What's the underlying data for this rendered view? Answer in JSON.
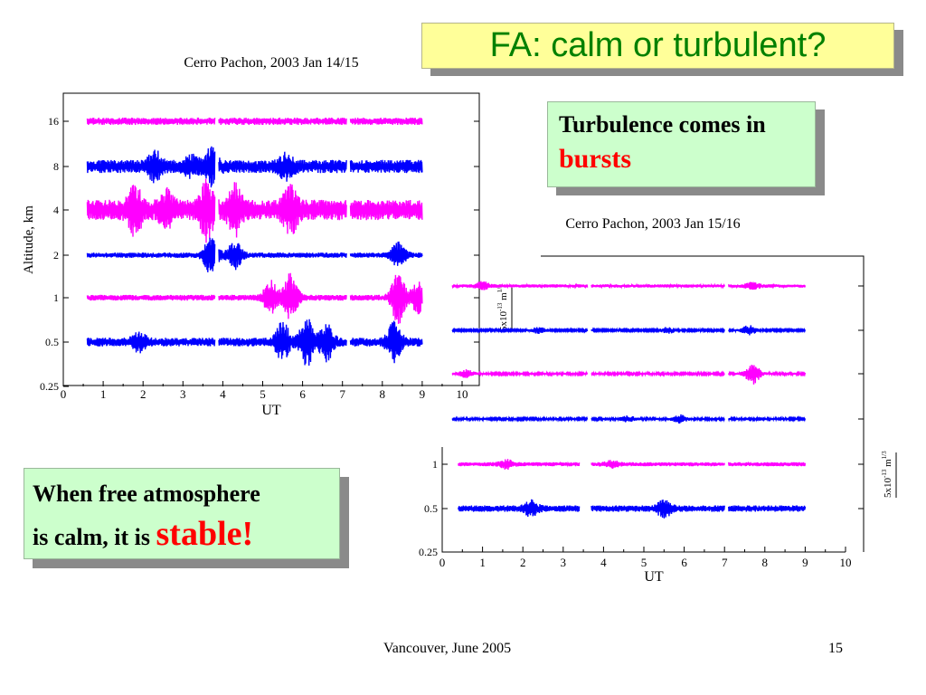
{
  "slide": {
    "title": "FA: calm or turbulent?",
    "callout_bursts": {
      "text": "Turbulence comes in",
      "highlight": "bursts"
    },
    "callout_stable": {
      "line1": "When free atmosphere",
      "line2": "is calm, it is",
      "highlight": "stable!"
    },
    "footer_left": "Vancouver, June 2005",
    "page_number": "15",
    "colors": {
      "title_text": "#008000",
      "title_bg": "#ffff99",
      "callout_bg": "#ccffcc",
      "highlight": "#ff0000",
      "magenta": "#ff00ff",
      "blue": "#0000ff"
    }
  },
  "chart_data": [
    {
      "type": "line",
      "title": "Cerro Pachon,  2003 Jan 14/15",
      "xlabel": "UT",
      "ylabel": "Altitude, km",
      "xlim": [
        0,
        10
      ],
      "x_ticks": [
        0,
        1,
        2,
        3,
        4,
        5,
        6,
        7,
        8,
        9,
        10
      ],
      "y_scale": "log",
      "ylim": [
        0.25,
        24
      ],
      "y_ticks": [
        "16",
        "8",
        "4",
        "2",
        "1",
        "0.5",
        "0.25"
      ],
      "series": [
        {
          "level": 16,
          "color": "#ff00ff",
          "segments": [
            [
              0.6,
              3.8
            ],
            [
              3.9,
              7.1
            ],
            [
              7.2,
              9.0
            ]
          ],
          "intensity": 0.25,
          "bursts": []
        },
        {
          "level": 8,
          "color": "#0000ff",
          "segments": [
            [
              0.6,
              3.8
            ],
            [
              3.9,
              7.1
            ],
            [
              7.2,
              9.0
            ]
          ],
          "intensity": 0.45,
          "bursts": [
            {
              "t": 2.3,
              "amp": 0.8
            },
            {
              "t": 3.2,
              "amp": 0.5
            },
            {
              "t": 3.7,
              "amp": 1.0
            },
            {
              "t": 5.6,
              "amp": 0.7
            }
          ]
        },
        {
          "level": 4,
          "color": "#ff00ff",
          "segments": [
            [
              0.6,
              3.8
            ],
            [
              3.9,
              7.1
            ],
            [
              7.2,
              9.0
            ]
          ],
          "intensity": 0.7,
          "bursts": [
            {
              "t": 1.8,
              "amp": 1.3
            },
            {
              "t": 2.6,
              "amp": 0.9
            },
            {
              "t": 3.6,
              "amp": 1.6
            },
            {
              "t": 4.3,
              "amp": 1.3
            },
            {
              "t": 5.7,
              "amp": 1.4
            }
          ]
        },
        {
          "level": 2,
          "color": "#0000ff",
          "segments": [
            [
              0.6,
              3.8
            ],
            [
              3.9,
              7.1
            ],
            [
              7.2,
              9.0
            ]
          ],
          "intensity": 0.18,
          "bursts": [
            {
              "t": 3.7,
              "amp": 1.2
            },
            {
              "t": 4.3,
              "amp": 0.9
            },
            {
              "t": 8.4,
              "amp": 0.8
            }
          ]
        },
        {
          "level": 1,
          "color": "#ff00ff",
          "segments": [
            [
              0.6,
              3.8
            ],
            [
              3.9,
              7.1
            ],
            [
              7.2,
              9.0
            ]
          ],
          "intensity": 0.2,
          "bursts": [
            {
              "t": 5.2,
              "amp": 1.1
            },
            {
              "t": 5.7,
              "amp": 1.6
            },
            {
              "t": 8.4,
              "amp": 1.7
            },
            {
              "t": 8.9,
              "amp": 1.0
            }
          ]
        },
        {
          "level": 0.5,
          "color": "#0000ff",
          "segments": [
            [
              0.6,
              3.8
            ],
            [
              3.9,
              7.1
            ],
            [
              7.2,
              9.0
            ]
          ],
          "intensity": 0.3,
          "bursts": [
            {
              "t": 1.9,
              "amp": 0.5
            },
            {
              "t": 5.5,
              "amp": 1.2
            },
            {
              "t": 6.1,
              "amp": 1.5
            },
            {
              "t": 6.6,
              "amp": 1.1
            },
            {
              "t": 8.3,
              "amp": 1.3
            }
          ]
        }
      ]
    },
    {
      "type": "line",
      "title": "Cerro Pachon, 2003 Jan 15/16",
      "xlabel": "UT",
      "xlim": [
        0,
        10
      ],
      "x_ticks": [
        0,
        1,
        2,
        3,
        4,
        5,
        6,
        7,
        8,
        9,
        10
      ],
      "y_scale": "log",
      "ylim": [
        0.25,
        24
      ],
      "y_ticks": [
        "1",
        "0.5",
        "0.25"
      ],
      "scale_label": "5x10-13 m1/3",
      "series": [
        {
          "level": 16,
          "color": "#ff00ff",
          "segments": [
            [
              0.25,
              3.6
            ],
            [
              3.7,
              7.0
            ],
            [
              7.1,
              9.0
            ]
          ],
          "intensity": 0.18,
          "bursts": [
            {
              "t": 1.0,
              "amp": 0.4
            },
            {
              "t": 7.7,
              "amp": 0.3
            }
          ]
        },
        {
          "level": 8,
          "color": "#0000ff",
          "segments": [
            [
              0.25,
              3.6
            ],
            [
              3.7,
              7.0
            ],
            [
              7.1,
              9.0
            ]
          ],
          "intensity": 0.1,
          "bursts": [
            {
              "t": 2.4,
              "amp": 0.3
            },
            {
              "t": 5.6,
              "amp": 0.3
            },
            {
              "t": 7.6,
              "amp": 0.5
            }
          ]
        },
        {
          "level": 4,
          "color": "#ff00ff",
          "segments": [
            [
              0.25,
              3.6
            ],
            [
              3.7,
              7.0
            ],
            [
              7.1,
              9.0
            ]
          ],
          "intensity": 0.12,
          "bursts": [
            {
              "t": 0.6,
              "amp": 0.4
            },
            {
              "t": 7.7,
              "amp": 1.1
            }
          ]
        },
        {
          "level": 2,
          "color": "#0000ff",
          "segments": [
            [
              0.25,
              3.6
            ],
            [
              3.7,
              7.0
            ],
            [
              7.1,
              9.0
            ]
          ],
          "intensity": 0.12,
          "bursts": [
            {
              "t": 4.6,
              "amp": 0.3
            },
            {
              "t": 5.9,
              "amp": 0.4
            }
          ]
        },
        {
          "level": 1,
          "color": "#ff00ff",
          "segments": [
            [
              0.4,
              3.4
            ],
            [
              3.7,
              7.0
            ],
            [
              7.1,
              9.0
            ]
          ],
          "intensity": 0.22,
          "bursts": [
            {
              "t": 1.6,
              "amp": 0.4
            },
            {
              "t": 4.2,
              "amp": 0.3
            }
          ]
        },
        {
          "level": 0.5,
          "color": "#0000ff",
          "segments": [
            [
              0.4,
              3.4
            ],
            [
              3.7,
              7.0
            ],
            [
              7.1,
              9.0
            ]
          ],
          "intensity": 0.35,
          "bursts": [
            {
              "t": 2.2,
              "amp": 0.7
            },
            {
              "t": 5.5,
              "amp": 0.8
            }
          ]
        }
      ]
    }
  ]
}
